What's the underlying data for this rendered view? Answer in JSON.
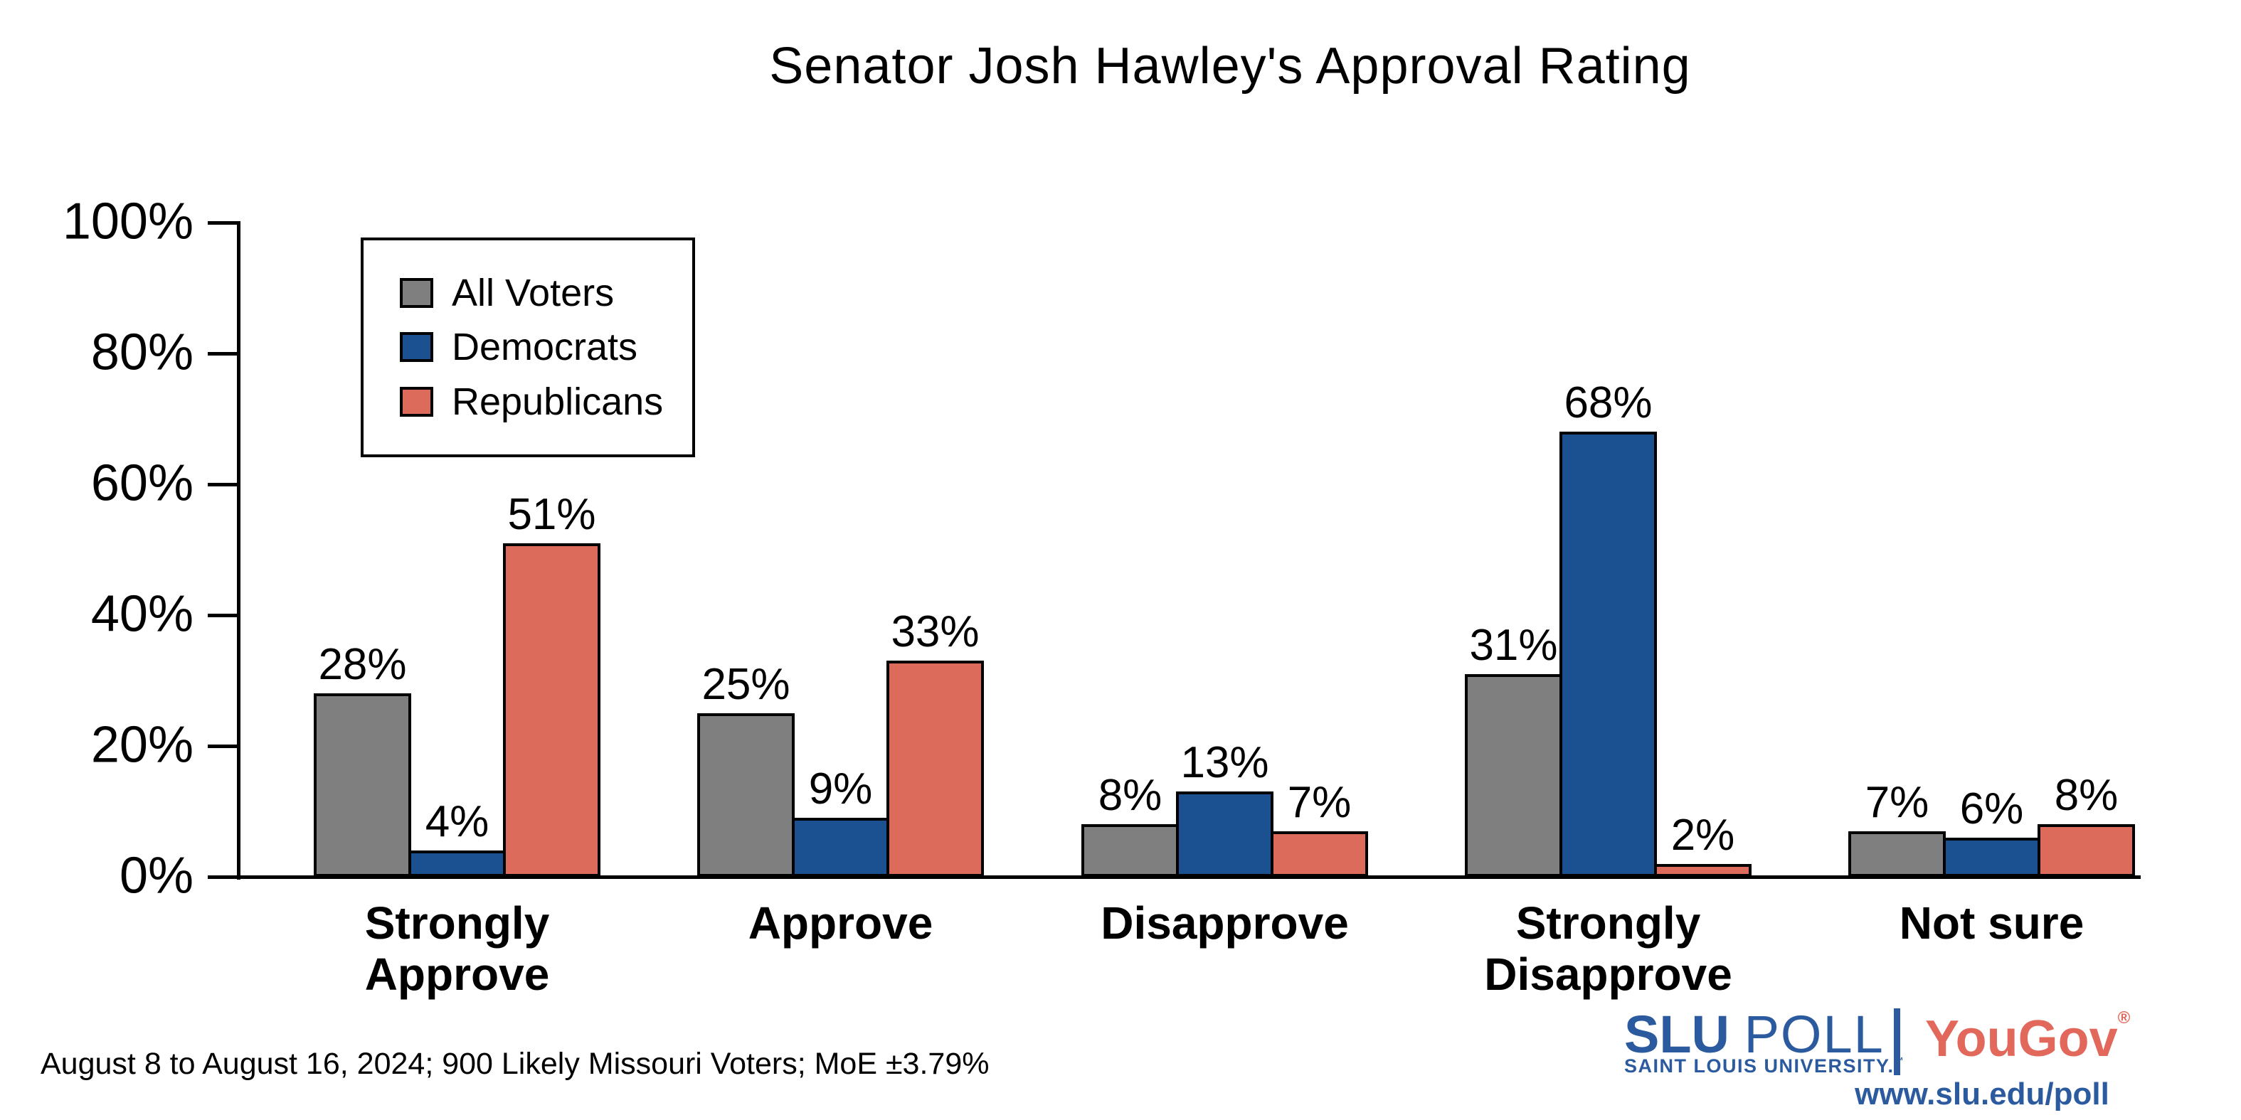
{
  "chart_data": {
    "type": "bar",
    "title": "Senator Josh Hawley's Approval Rating",
    "categories": [
      "Strongly\nApprove",
      "Approve",
      "Disapprove",
      "Strongly\nDisapprove",
      "Not sure"
    ],
    "series": [
      {
        "name": "All Voters",
        "color": "#7f7f7f",
        "values": [
          28,
          25,
          8,
          31,
          7
        ]
      },
      {
        "name": "Democrats",
        "color": "#1b5091",
        "values": [
          4,
          9,
          13,
          68,
          6
        ]
      },
      {
        "name": "Republicans",
        "color": "#dc6b5b",
        "values": [
          51,
          33,
          7,
          2,
          8
        ]
      }
    ],
    "value_suffix": "%",
    "ylim": [
      0,
      100
    ],
    "y_ticks": [
      "0%",
      "20%",
      "40%",
      "60%",
      "80%",
      "100%"
    ],
    "grid": false,
    "legend_position": "upper-left",
    "bar_edge_color": "#000000"
  },
  "footer": {
    "note": "August 8 to August 16, 2024; 900 Likely Missouri Voters; MoE ±3.79%"
  },
  "branding": {
    "slu": "SLU",
    "poll": "POLL",
    "tagline": "SAINT LOUIS UNIVERSITY.",
    "tm": "™",
    "yougov": "YouGov",
    "reg": "®",
    "url": "www.slu.edu/poll",
    "slu_blue": "#2b5b9e",
    "yougov_red": "#e2685c"
  }
}
